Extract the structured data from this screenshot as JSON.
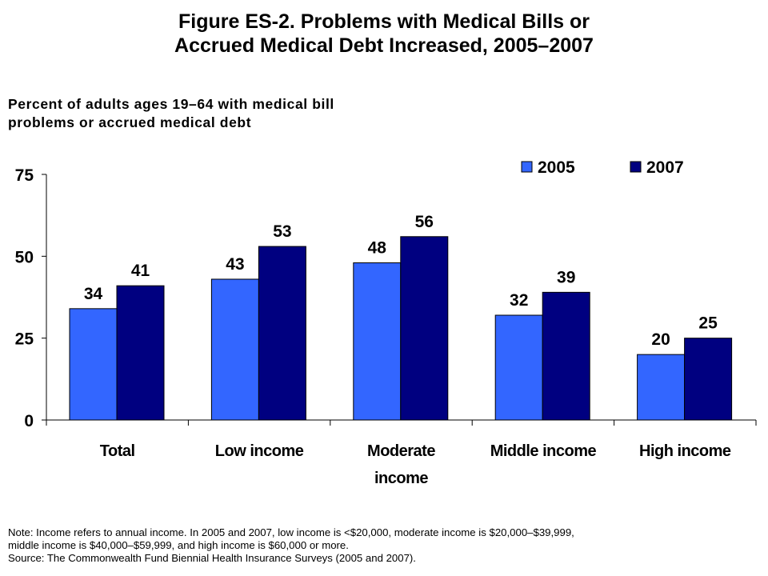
{
  "title_lines": [
    "Figure ES-2. Problems with Medical Bills or",
    "Accrued Medical Debt Increased, 2005–2007"
  ],
  "subtitle_lines": [
    "Percent of adults ages 19–64 with medical bill",
    "problems or accrued medical debt"
  ],
  "colors": {
    "series_2005": "#3366FF",
    "series_2007": "#000080"
  },
  "chart_data": {
    "type": "bar",
    "title": "Figure ES-2. Problems with Medical Bills or Accrued Medical Debt Increased, 2005–2007",
    "subtitle": "Percent of adults ages 19–64 with medical bill problems or accrued medical debt",
    "categories": [
      [
        "Total"
      ],
      [
        "Low income"
      ],
      [
        "Moderate",
        "income"
      ],
      [
        "Middle income"
      ],
      [
        "High income"
      ]
    ],
    "series": [
      {
        "name": "2005",
        "values": [
          34,
          43,
          48,
          32,
          20
        ],
        "color": "#3366FF"
      },
      {
        "name": "2007",
        "values": [
          41,
          53,
          56,
          39,
          25
        ],
        "color": "#000080"
      }
    ],
    "yticks": [
      "0",
      "25",
      "50",
      "75"
    ],
    "ytick_values": [
      0,
      25,
      50,
      75
    ],
    "ylim": [
      0,
      75
    ],
    "xlabel": "",
    "ylabel": "",
    "grid": false,
    "legend_position": "top-right",
    "data_labels": true
  },
  "note_lines": [
    "Note: Income refers to annual income. In 2005 and 2007, low income is <$20,000, moderate income is $20,000–$39,999,",
    "middle income is $40,000–$59,999, and high income is $60,000 or more.",
    "Source: The Commonwealth Fund Biennial Health Insurance Surveys (2005 and 2007)."
  ]
}
